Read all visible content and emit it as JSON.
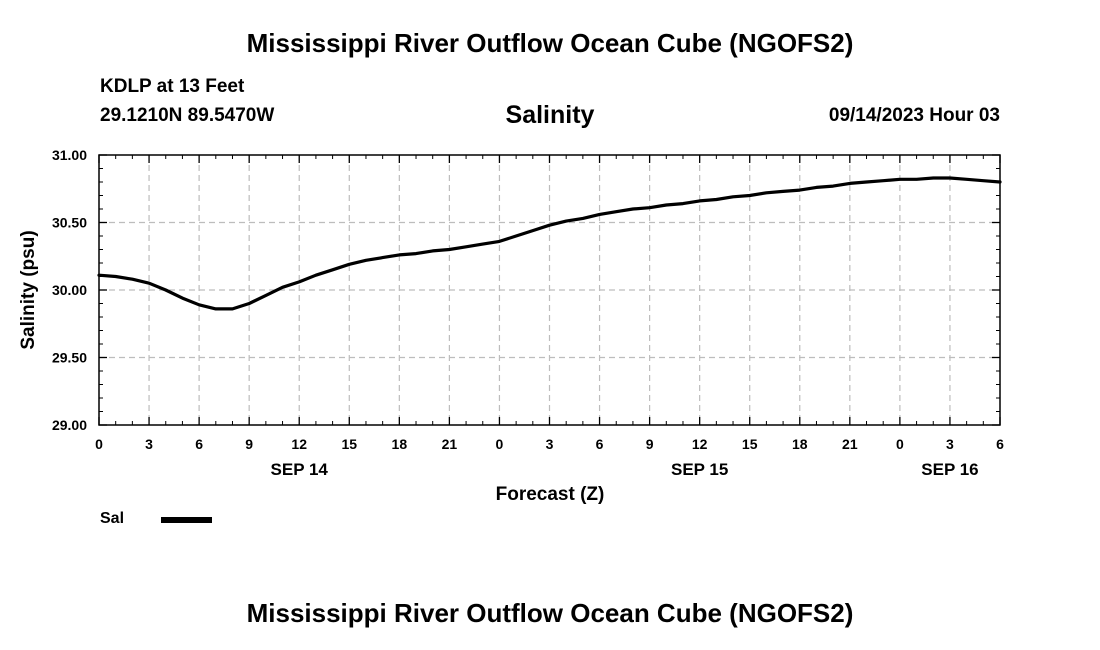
{
  "header": {
    "title": "Mississippi River Outflow Ocean Cube (NGOFS2)",
    "station": "KDLP at 13 Feet",
    "coordinates": "29.1210N  89.5470W",
    "subtitle": "Salinity",
    "datetime": "09/14/2023 Hour 03"
  },
  "legend": {
    "label": "Sal"
  },
  "footer": {
    "title": "Mississippi River Outflow Ocean Cube (NGOFS2)"
  },
  "chart_data": {
    "type": "line",
    "title": "Salinity",
    "xlabel": "Forecast (Z)",
    "ylabel": "Salinity (psu)",
    "xlim": [
      0,
      54
    ],
    "ylim": [
      29.0,
      31.0
    ],
    "grid": true,
    "x_ticks": [
      0,
      3,
      6,
      9,
      12,
      15,
      18,
      21,
      24,
      27,
      30,
      33,
      36,
      39,
      42,
      45,
      48,
      51,
      54
    ],
    "x_tick_labels": [
      "0",
      "3",
      "6",
      "9",
      "12",
      "15",
      "18",
      "21",
      "0",
      "3",
      "6",
      "9",
      "12",
      "15",
      "18",
      "21",
      "0",
      "3",
      "6"
    ],
    "y_ticks": [
      29.0,
      29.5,
      30.0,
      30.5,
      31.0
    ],
    "y_tick_labels": [
      "29.00",
      "29.50",
      "30.00",
      "30.50",
      "31.00"
    ],
    "date_labels": [
      {
        "x": 12,
        "label": "SEP 14"
      },
      {
        "x": 36,
        "label": "SEP 15"
      },
      {
        "x": 51,
        "label": "SEP 16"
      }
    ],
    "series": [
      {
        "name": "Sal",
        "color": "#000000",
        "x": [
          0,
          1,
          2,
          3,
          4,
          5,
          6,
          7,
          8,
          9,
          10,
          11,
          12,
          13,
          14,
          15,
          16,
          17,
          18,
          19,
          20,
          21,
          22,
          23,
          24,
          25,
          26,
          27,
          28,
          29,
          30,
          31,
          32,
          33,
          34,
          35,
          36,
          37,
          38,
          39,
          40,
          41,
          42,
          43,
          44,
          45,
          46,
          47,
          48,
          49,
          50,
          51,
          52,
          53,
          54
        ],
        "values": [
          30.11,
          30.1,
          30.08,
          30.05,
          30.0,
          29.94,
          29.89,
          29.86,
          29.86,
          29.9,
          29.96,
          30.02,
          30.06,
          30.11,
          30.15,
          30.19,
          30.22,
          30.24,
          30.26,
          30.27,
          30.29,
          30.3,
          30.32,
          30.34,
          30.36,
          30.4,
          30.44,
          30.48,
          30.51,
          30.53,
          30.56,
          30.58,
          30.6,
          30.61,
          30.63,
          30.64,
          30.66,
          30.67,
          30.69,
          30.7,
          30.72,
          30.73,
          30.74,
          30.76,
          30.77,
          30.79,
          30.8,
          30.81,
          30.82,
          30.82,
          30.83,
          30.83,
          30.82,
          30.81,
          30.8
        ]
      }
    ]
  }
}
